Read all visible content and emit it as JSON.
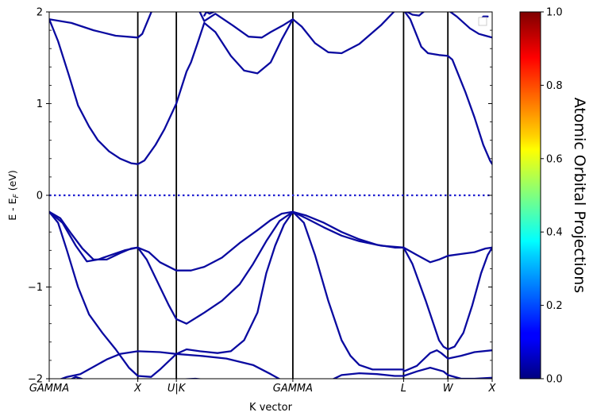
{
  "chart_data": {
    "type": "line",
    "xlabel": "K vector",
    "ylabel_main": "E - E",
    "ylabel_sub": "F",
    "ylabel_unit": " (eV)",
    "xlim": [
      0,
      10
    ],
    "ylim": [
      -2,
      2
    ],
    "y_ticks": [
      {
        "value": 2,
        "label": "2"
      },
      {
        "value": 1,
        "label": "1"
      },
      {
        "value": 0,
        "label": "0"
      },
      {
        "value": -1,
        "label": "−1"
      },
      {
        "value": -2,
        "label": "−2"
      }
    ],
    "kpoints": [
      {
        "x": 0,
        "label": "GAMMA"
      },
      {
        "x": 2,
        "label": "X"
      },
      {
        "x": 2.87,
        "label": "U|K"
      },
      {
        "x": 5.5,
        "label": "GAMMA"
      },
      {
        "x": 8.0,
        "label": "L"
      },
      {
        "x": 9.0,
        "label": "W"
      },
      {
        "x": 10,
        "label": "X"
      }
    ],
    "fermi_level": 0,
    "line_color": "#0a0aa0",
    "fermi_color": "#1f1fd0",
    "colorbar": {
      "label": "Atomic Orbital Projections",
      "min": 0,
      "max": 1,
      "ticks": [
        {
          "value": 0,
          "label": "0.0"
        },
        {
          "value": 0.2,
          "label": "0.2"
        },
        {
          "value": 0.4,
          "label": "0.4"
        },
        {
          "value": 0.6,
          "label": "0.6"
        },
        {
          "value": 0.8,
          "label": "0.8"
        },
        {
          "value": 1,
          "label": "1.0"
        }
      ],
      "colormap": "jet"
    },
    "series": [
      {
        "points": [
          [
            0,
            1.92
          ],
          [
            0.5,
            1.88
          ],
          [
            1,
            1.8
          ],
          [
            1.5,
            1.74
          ],
          [
            2,
            1.72
          ],
          [
            2.1,
            1.76
          ],
          [
            2.35,
            2.05
          ]
        ]
      },
      {
        "points": [
          [
            0,
            1.92
          ],
          [
            0.2,
            1.68
          ],
          [
            0.45,
            1.3
          ],
          [
            0.65,
            0.98
          ],
          [
            0.9,
            0.75
          ],
          [
            1.1,
            0.6
          ],
          [
            1.35,
            0.48
          ],
          [
            1.6,
            0.4
          ],
          [
            1.85,
            0.35
          ],
          [
            2,
            0.34
          ],
          [
            2.15,
            0.38
          ],
          [
            2.4,
            0.55
          ],
          [
            2.6,
            0.72
          ],
          [
            2.87,
            1.0
          ],
          [
            3.1,
            1.35
          ],
          [
            3.2,
            1.45
          ],
          [
            3.35,
            1.66
          ],
          [
            3.5,
            1.88
          ],
          [
            3.75,
            1.78
          ],
          [
            4.1,
            1.52
          ],
          [
            4.4,
            1.36
          ],
          [
            4.7,
            1.33
          ],
          [
            5.0,
            1.45
          ],
          [
            5.25,
            1.7
          ],
          [
            5.5,
            1.92
          ],
          [
            5.7,
            1.84
          ],
          [
            6.0,
            1.66
          ],
          [
            6.3,
            1.56
          ],
          [
            6.6,
            1.55
          ],
          [
            7.0,
            1.65
          ],
          [
            7.5,
            1.86
          ],
          [
            7.78,
            2.0
          ]
        ]
      },
      {
        "points": [
          [
            3.35,
            2.05
          ],
          [
            3.5,
            1.9
          ],
          [
            3.75,
            1.98
          ],
          [
            4.15,
            1.85
          ],
          [
            4.5,
            1.73
          ],
          [
            4.8,
            1.72
          ],
          [
            5.0,
            1.78
          ],
          [
            5.3,
            1.86
          ],
          [
            5.5,
            1.92
          ]
        ]
      },
      {
        "points": [
          [
            3.5,
            1.96
          ],
          [
            3.55,
            2.0
          ],
          [
            3.62,
            1.98
          ],
          [
            3.8,
            2.02
          ]
        ]
      },
      {
        "points": [
          [
            8.0,
            2.02
          ],
          [
            8.2,
            1.97
          ],
          [
            8.35,
            1.96
          ],
          [
            8.5,
            2.02
          ]
        ]
      },
      {
        "points": [
          [
            8.0,
            2.02
          ],
          [
            8.15,
            1.92
          ],
          [
            8.4,
            1.62
          ],
          [
            8.55,
            1.55
          ],
          [
            8.8,
            1.53
          ],
          [
            9.0,
            1.52
          ],
          [
            9.1,
            1.48
          ],
          [
            9.4,
            1.12
          ],
          [
            9.6,
            0.85
          ],
          [
            9.8,
            0.55
          ],
          [
            9.95,
            0.38
          ],
          [
            10,
            0.34
          ]
        ]
      },
      {
        "points": [
          [
            9.0,
            2.02
          ],
          [
            9.2,
            1.95
          ],
          [
            9.5,
            1.82
          ],
          [
            9.7,
            1.76
          ],
          [
            9.85,
            1.74
          ],
          [
            10,
            1.72
          ]
        ]
      },
      {
        "points": [
          [
            9.75,
            1.92
          ],
          [
            9.8,
            1.95
          ],
          [
            9.9,
            1.95
          ]
        ]
      },
      {
        "points": [
          [
            0,
            -0.18
          ],
          [
            0.25,
            -0.25
          ],
          [
            0.5,
            -0.42
          ],
          [
            0.75,
            -0.58
          ],
          [
            1.0,
            -0.7
          ],
          [
            1.3,
            -0.7
          ],
          [
            1.6,
            -0.63
          ],
          [
            1.85,
            -0.58
          ],
          [
            2,
            -0.57
          ],
          [
            2.25,
            -0.62
          ],
          [
            2.5,
            -0.73
          ],
          [
            2.87,
            -0.82
          ],
          [
            3.2,
            -0.82
          ],
          [
            3.5,
            -0.78
          ],
          [
            3.9,
            -0.68
          ],
          [
            4.3,
            -0.52
          ],
          [
            4.7,
            -0.38
          ],
          [
            5.0,
            -0.27
          ],
          [
            5.25,
            -0.2
          ],
          [
            5.5,
            -0.18
          ],
          [
            5.8,
            -0.22
          ],
          [
            6.2,
            -0.3
          ],
          [
            6.6,
            -0.4
          ],
          [
            7.0,
            -0.48
          ],
          [
            7.4,
            -0.54
          ],
          [
            7.8,
            -0.57
          ],
          [
            8.0,
            -0.57
          ],
          [
            8.3,
            -0.65
          ],
          [
            8.6,
            -0.73
          ],
          [
            8.8,
            -0.7
          ],
          [
            9.0,
            -0.66
          ],
          [
            9.3,
            -0.64
          ],
          [
            9.6,
            -0.62
          ],
          [
            9.85,
            -0.58
          ],
          [
            10,
            -0.57
          ]
        ]
      },
      {
        "points": [
          [
            0,
            -0.18
          ],
          [
            0.3,
            -0.3
          ],
          [
            0.6,
            -0.55
          ],
          [
            0.85,
            -0.72
          ],
          [
            1.1,
            -0.7
          ],
          [
            1.4,
            -0.65
          ],
          [
            1.7,
            -0.6
          ],
          [
            2,
            -0.57
          ],
          [
            2.2,
            -0.7
          ],
          [
            2.5,
            -1.0
          ],
          [
            2.7,
            -1.2
          ],
          [
            2.87,
            -1.35
          ],
          [
            3.1,
            -1.4
          ],
          [
            3.5,
            -1.28
          ],
          [
            3.9,
            -1.15
          ],
          [
            4.3,
            -0.97
          ],
          [
            4.6,
            -0.75
          ],
          [
            4.9,
            -0.5
          ],
          [
            5.2,
            -0.28
          ],
          [
            5.5,
            -0.18
          ],
          [
            5.8,
            -0.25
          ],
          [
            6.2,
            -0.35
          ],
          [
            6.6,
            -0.44
          ],
          [
            7.0,
            -0.5
          ],
          [
            7.5,
            -0.55
          ],
          [
            8.0,
            -0.57
          ]
        ]
      },
      {
        "points": [
          [
            0,
            -0.18
          ],
          [
            0.2,
            -0.3
          ],
          [
            0.4,
            -0.6
          ],
          [
            0.65,
            -1.0
          ],
          [
            0.9,
            -1.3
          ],
          [
            1.2,
            -1.5
          ],
          [
            1.5,
            -1.68
          ],
          [
            1.8,
            -1.88
          ],
          [
            2,
            -1.97
          ],
          [
            2.3,
            -1.98
          ],
          [
            2.5,
            -1.9
          ],
          [
            2.87,
            -1.73
          ],
          [
            3.1,
            -1.68
          ],
          [
            3.4,
            -1.7
          ],
          [
            3.8,
            -1.72
          ],
          [
            4.1,
            -1.7
          ],
          [
            4.4,
            -1.58
          ],
          [
            4.7,
            -1.28
          ],
          [
            4.9,
            -0.85
          ],
          [
            5.1,
            -0.55
          ],
          [
            5.3,
            -0.32
          ],
          [
            5.5,
            -0.18
          ],
          [
            5.75,
            -0.3
          ],
          [
            6.0,
            -0.65
          ],
          [
            6.3,
            -1.15
          ],
          [
            6.6,
            -1.58
          ],
          [
            6.8,
            -1.75
          ],
          [
            7.0,
            -1.85
          ],
          [
            7.3,
            -1.9
          ],
          [
            7.6,
            -1.9
          ],
          [
            8.0,
            -1.9
          ]
        ]
      },
      {
        "points": [
          [
            8.0,
            -0.57
          ],
          [
            8.2,
            -0.75
          ],
          [
            8.5,
            -1.15
          ],
          [
            8.8,
            -1.58
          ],
          [
            8.9,
            -1.65
          ],
          [
            9.0,
            -1.68
          ],
          [
            9.15,
            -1.65
          ],
          [
            9.35,
            -1.5
          ],
          [
            9.55,
            -1.2
          ],
          [
            9.75,
            -0.85
          ],
          [
            9.9,
            -0.65
          ],
          [
            10,
            -0.57
          ]
        ]
      },
      {
        "points": [
          [
            0,
            -2.05
          ],
          [
            0.4,
            -1.98
          ],
          [
            0.7,
            -1.95
          ],
          [
            1.0,
            -1.87
          ],
          [
            1.3,
            -1.79
          ],
          [
            1.6,
            -1.73
          ],
          [
            2,
            -1.7
          ],
          [
            2.5,
            -1.71
          ],
          [
            2.87,
            -1.73
          ],
          [
            3.4,
            -1.75
          ],
          [
            4.0,
            -1.78
          ],
          [
            4.6,
            -1.85
          ],
          [
            5.0,
            -1.95
          ],
          [
            5.3,
            -2.03
          ]
        ]
      },
      {
        "points": [
          [
            0.4,
            -2.03
          ],
          [
            0.6,
            -1.98
          ],
          [
            0.85,
            -2.02
          ]
        ]
      },
      {
        "points": [
          [
            2.4,
            -2.05
          ],
          [
            2.6,
            -2.03
          ],
          [
            2.87,
            -2.01
          ],
          [
            3.3,
            -2.0
          ],
          [
            3.7,
            -2.02
          ],
          [
            4.0,
            -2.05
          ]
        ]
      },
      {
        "points": [
          [
            6.3,
            -2.03
          ],
          [
            6.6,
            -1.96
          ],
          [
            7.0,
            -1.94
          ],
          [
            7.4,
            -1.95
          ],
          [
            7.8,
            -1.97
          ],
          [
            8.0,
            -1.97
          ],
          [
            8.3,
            -1.92
          ],
          [
            8.6,
            -1.88
          ],
          [
            8.9,
            -1.92
          ],
          [
            9.0,
            -1.96
          ],
          [
            9.3,
            -2.0
          ],
          [
            9.6,
            -2.0
          ],
          [
            10,
            -1.99
          ]
        ]
      },
      {
        "points": [
          [
            8.0,
            -1.92
          ],
          [
            8.3,
            -1.86
          ],
          [
            8.6,
            -1.72
          ],
          [
            8.75,
            -1.69
          ],
          [
            8.85,
            -1.72
          ],
          [
            9.0,
            -1.78
          ],
          [
            9.3,
            -1.75
          ],
          [
            9.6,
            -1.71
          ],
          [
            10,
            -1.69
          ]
        ]
      }
    ]
  }
}
